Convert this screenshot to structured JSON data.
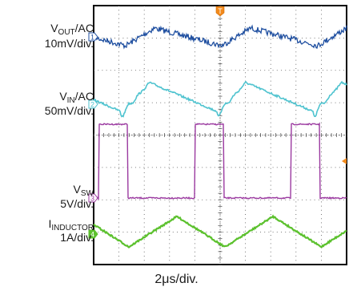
{
  "chart_data": {
    "type": "line",
    "time_per_division": "2μs/div.",
    "grid": {
      "divisions_x": 10,
      "divisions_y": 8
    },
    "trigger_marker": "T",
    "channels": [
      {
        "id": "1",
        "name_main": "V",
        "name_sub": "OUT",
        "name_suffix": "/AC",
        "scale": "10mV/div.",
        "color": "#1f4fa0",
        "waveform": "noisy sawtooth",
        "period_divisions": 3.8
      },
      {
        "id": "2",
        "name_main": "V",
        "name_sub": "IN",
        "name_suffix": "/AC",
        "scale": "50mV/div.",
        "color": "#4fc3cf",
        "waveform": "ringing sawtooth",
        "period_divisions": 3.8
      },
      {
        "id": "3",
        "name_main": "V",
        "name_sub": "SW",
        "name_suffix": "",
        "scale": "5V/div.",
        "color": "#9b3aa0",
        "waveform": "square",
        "period_divisions": 3.8,
        "duty_cycle": 0.3
      },
      {
        "id": "4",
        "name_main": "I",
        "name_sub": "INDUCTOR",
        "name_suffix": "",
        "scale": "1A/div.",
        "color": "#5cc12e",
        "waveform": "triangle",
        "period_divisions": 3.8
      }
    ]
  }
}
